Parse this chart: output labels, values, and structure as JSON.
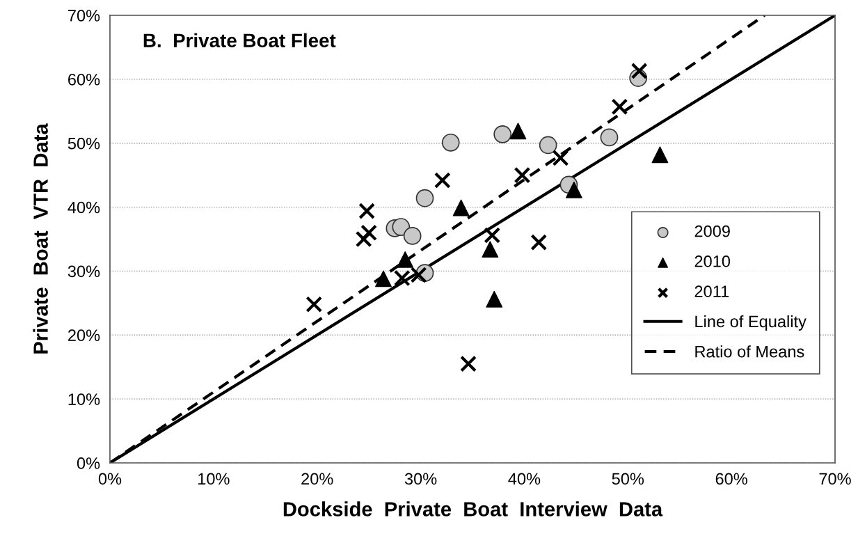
{
  "chart_data": {
    "type": "scatter",
    "title": "B.  Private Boat Fleet",
    "xlabel": "Dockside  Private  Boat  Interview  Data",
    "ylabel": "Private  Boat  VTR  Data",
    "xlim": [
      0,
      70
    ],
    "ylim": [
      0,
      70
    ],
    "xticks": [
      {
        "value": 0,
        "label": "0%"
      },
      {
        "value": 10,
        "label": "10%"
      },
      {
        "value": 20,
        "label": "20%"
      },
      {
        "value": 30,
        "label": "30%"
      },
      {
        "value": 40,
        "label": "40%"
      },
      {
        "value": 50,
        "label": "50%"
      },
      {
        "value": 60,
        "label": "60%"
      },
      {
        "value": 70,
        "label": "70%"
      }
    ],
    "yticks": [
      {
        "value": 0,
        "label": "0%"
      },
      {
        "value": 10,
        "label": "10%"
      },
      {
        "value": 20,
        "label": "20%"
      },
      {
        "value": 30,
        "label": "30%"
      },
      {
        "value": 40,
        "label": "40%"
      },
      {
        "value": 50,
        "label": "50%"
      },
      {
        "value": 60,
        "label": "60%"
      },
      {
        "value": 70,
        "label": "70%"
      }
    ],
    "grid": "y",
    "legend": "right",
    "series": [
      {
        "name": "2009",
        "marker": "circle",
        "color": "#c8c8c8",
        "x": [
          30.4,
          27.5,
          28.1,
          29.2,
          30.4,
          44.3,
          51.0,
          48.2,
          42.3,
          32.9,
          37.9
        ],
        "values": [
          41.4,
          36.7,
          36.9,
          35.5,
          29.7,
          43.5,
          60.2,
          50.9,
          49.7,
          50.1,
          51.4
        ]
      },
      {
        "name": "2010",
        "marker": "triangle",
        "color": "#000000",
        "x": [
          33.9,
          28.5,
          26.4,
          44.8,
          36.7,
          37.1,
          53.1,
          39.4
        ],
        "values": [
          39.9,
          31.8,
          28.8,
          42.7,
          33.4,
          25.6,
          48.2,
          51.9
        ]
      },
      {
        "name": "2011",
        "marker": "cross",
        "color": "#000000",
        "x": [
          32.1,
          39.8,
          43.5,
          36.9,
          41.4,
          28.2,
          29.8,
          34.6,
          19.7,
          24.5,
          24.8,
          25.0,
          51.1,
          49.2
        ],
        "values": [
          44.2,
          45.0,
          47.7,
          35.6,
          34.5,
          28.9,
          29.4,
          15.5,
          24.8,
          35.0,
          39.4,
          36.0,
          61.3,
          55.7
        ]
      },
      {
        "name": "Line of Equality",
        "type": "line",
        "line_style": "solid",
        "color": "#000000",
        "x": [
          0,
          70
        ],
        "values": [
          0,
          70
        ]
      },
      {
        "name": "Ratio of Means",
        "type": "line",
        "line_style": "dashed",
        "color": "#000000",
        "x": [
          0,
          63.2
        ],
        "values": [
          0,
          70
        ]
      }
    ]
  }
}
